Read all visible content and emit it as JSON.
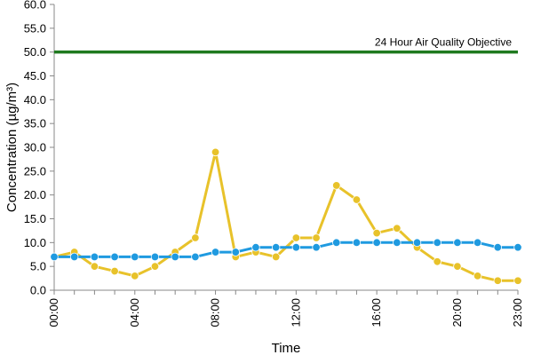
{
  "chart_data": {
    "type": "line",
    "title": "",
    "xlabel": "Time",
    "ylabel": "Concentration (µg/m³)",
    "ylim": [
      0,
      60
    ],
    "y_ticks": [
      "0.0",
      "5.0",
      "10.0",
      "15.0",
      "20.0",
      "25.0",
      "30.0",
      "35.0",
      "40.0",
      "45.0",
      "50.0",
      "55.0",
      "60.0"
    ],
    "categories": [
      "00:00",
      "01:00",
      "02:00",
      "03:00",
      "04:00",
      "05:00",
      "06:00",
      "07:00",
      "08:00",
      "09:00",
      "10:00",
      "11:00",
      "12:00",
      "13:00",
      "14:00",
      "15:00",
      "16:00",
      "17:00",
      "18:00",
      "19:00",
      "20:00",
      "21:00",
      "22:00",
      "23:00"
    ],
    "x_tick_labels": [
      "00:00",
      "04:00",
      "08:00",
      "12:00",
      "16:00",
      "20:00",
      "23:00"
    ],
    "series": [
      {
        "color": "#e8c22a",
        "values": [
          7,
          8,
          5,
          4,
          3,
          5,
          8,
          11,
          29,
          7,
          8,
          7,
          11,
          11,
          22,
          19,
          12,
          13,
          9,
          6,
          5,
          3,
          2,
          2
        ]
      },
      {
        "color": "#1f9ae0",
        "values": [
          7,
          7,
          7,
          7,
          7,
          7,
          7,
          7,
          8,
          8,
          9,
          9,
          9,
          9,
          10,
          10,
          10,
          10,
          10,
          10,
          10,
          10,
          9,
          9
        ]
      }
    ],
    "reference_line": {
      "value": 50,
      "label": "24 Hour Air Quality Objective",
      "color": "#1f7a1f"
    },
    "grid": false,
    "legend": "none"
  }
}
